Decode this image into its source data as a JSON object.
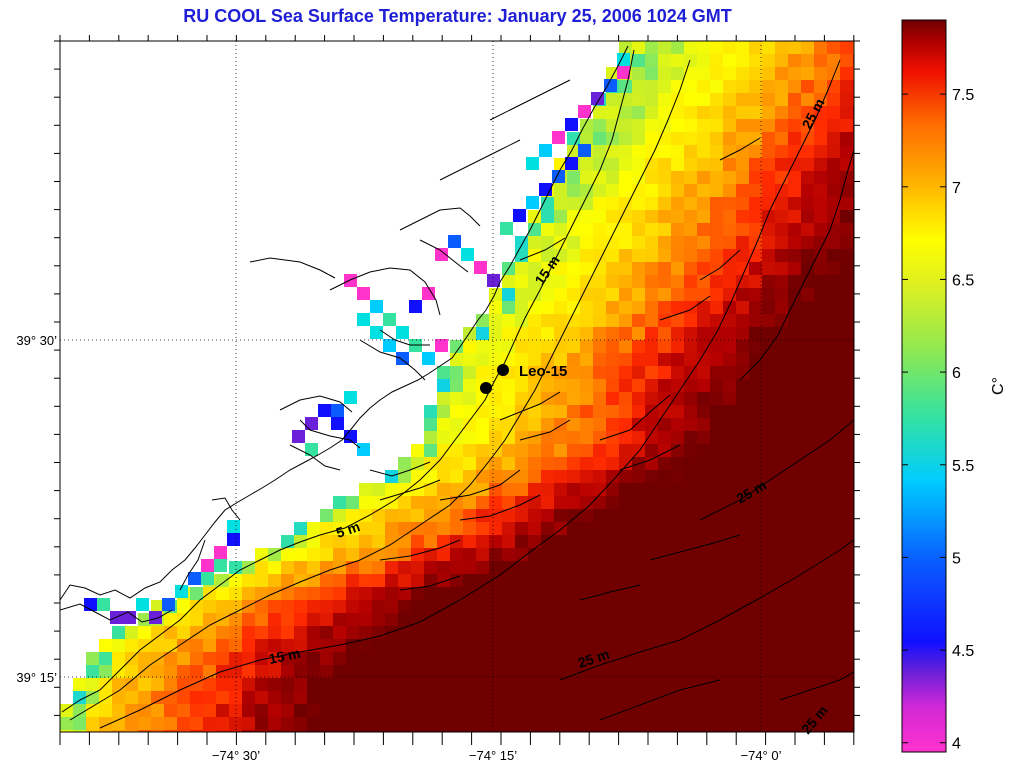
{
  "title": "RU COOL  Sea Surface Temperature:  January 25, 2006 1024 GMT",
  "map": {
    "lon_range": [
      -74.667,
      -74.0
    ],
    "lat_range": [
      39.15,
      39.75
    ],
    "lon_ticks": [
      {
        "value": -74.5,
        "label": "−74° 30’"
      },
      {
        "value": -74.25,
        "label": "−74° 15’"
      },
      {
        "value": -74.0,
        "label": "−74° 0’"
      }
    ],
    "lat_ticks": [
      {
        "value": 39.5,
        "label": "39° 30’"
      },
      {
        "value": 39.25,
        "label": "39° 15’"
      }
    ],
    "gridlines": "dotted"
  },
  "colorbar": {
    "unit": "C°",
    "range": [
      3.95,
      7.9
    ],
    "ticks": [
      "4",
      "4.5",
      "5",
      "5.5",
      "6",
      "6.5",
      "7",
      "7.5"
    ],
    "colormap": [
      "#ff33cc",
      "#8020d0",
      "#0a10ff",
      "#00ccff",
      "#36e2a0",
      "#c8ee28",
      "#ffff00",
      "#ffcc00",
      "#ff8800",
      "#ff2a00",
      "#b40000",
      "#700000"
    ]
  },
  "markers": [
    {
      "name": "Leo-15",
      "label": "Leo-15"
    },
    {
      "name": "second-node",
      "label": ""
    }
  ],
  "isobath_labels": [
    "5 m",
    "15 m",
    "15 m",
    "25 m",
    "25 m",
    "25 m",
    "25 m"
  ]
}
